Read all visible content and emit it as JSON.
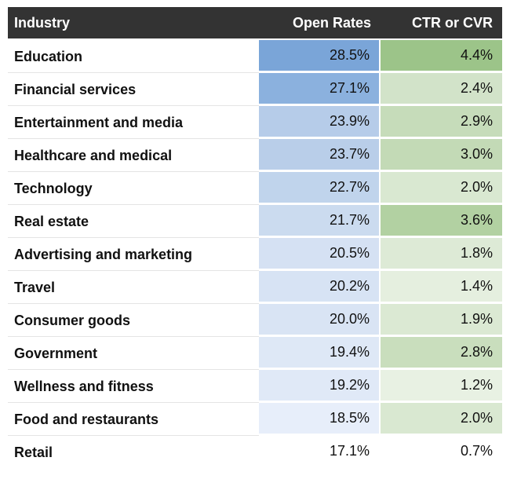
{
  "table": {
    "columns": [
      {
        "label": "Industry"
      },
      {
        "label": "Open Rates"
      },
      {
        "label": "CTR or CVR"
      }
    ],
    "rows": [
      {
        "industry": "Education",
        "open_rate": "28.5%",
        "ctr_or_cvr": "4.4%",
        "open_rate_color": "#7aa5d8",
        "ctr_color": "#9cc489"
      },
      {
        "industry": "Financial services",
        "open_rate": "27.1%",
        "ctr_or_cvr": "2.4%",
        "open_rate_color": "#8bb1de",
        "ctr_color": "#d2e3c9"
      },
      {
        "industry": "Entertainment and media",
        "open_rate": "23.9%",
        "ctr_or_cvr": "2.9%",
        "open_rate_color": "#b6cce9",
        "ctr_color": "#c6dcba"
      },
      {
        "industry": "Healthcare and medical",
        "open_rate": "23.7%",
        "ctr_or_cvr": "3.0%",
        "open_rate_color": "#b9cee9",
        "ctr_color": "#c3dab6"
      },
      {
        "industry": "Technology",
        "open_rate": "22.7%",
        "ctr_or_cvr": "2.0%",
        "open_rate_color": "#c0d4ec",
        "ctr_color": "#d9e8d1"
      },
      {
        "industry": "Real estate",
        "open_rate": "21.7%",
        "ctr_or_cvr": "3.6%",
        "open_rate_color": "#cbdbef",
        "ctr_color": "#b2d1a2"
      },
      {
        "industry": "Advertising and marketing",
        "open_rate": "20.5%",
        "ctr_or_cvr": "1.8%",
        "open_rate_color": "#d5e1f3",
        "ctr_color": "#ddead6"
      },
      {
        "industry": "Travel",
        "open_rate": "20.2%",
        "ctr_or_cvr": "1.4%",
        "open_rate_color": "#d7e3f4",
        "ctr_color": "#e5efdf"
      },
      {
        "industry": "Consumer goods",
        "open_rate": "20.0%",
        "ctr_or_cvr": "1.9%",
        "open_rate_color": "#d9e4f4",
        "ctr_color": "#dbe9d3"
      },
      {
        "industry": "Government",
        "open_rate": "19.4%",
        "ctr_or_cvr": "2.8%",
        "open_rate_color": "#dee8f6",
        "ctr_color": "#c9debd"
      },
      {
        "industry": "Wellness and fitness",
        "open_rate": "19.2%",
        "ctr_or_cvr": "1.2%",
        "open_rate_color": "#e0e9f7",
        "ctr_color": "#e8f1e3"
      },
      {
        "industry": "Food and restaurants",
        "open_rate": "18.5%",
        "ctr_or_cvr": "2.0%",
        "open_rate_color": "#e7eefa",
        "ctr_color": "#d9e8d1"
      },
      {
        "industry": "Retail",
        "open_rate": "17.1%",
        "ctr_or_cvr": "0.7%",
        "open_rate_color": "#ffffff",
        "ctr_color": "#ffffff"
      }
    ],
    "colors": {
      "header_bg": "#333333",
      "header_text": "#ffffff",
      "body_text": "#111111",
      "divider": "#e4e4e4",
      "open_rate_scale_max_color": "#7aa5d8",
      "ctr_scale_max_color": "#9cc489",
      "scale_min_color": "#ffffff"
    }
  },
  "chart_data": {
    "type": "table",
    "title": "",
    "categories": [
      "Education",
      "Financial services",
      "Entertainment and media",
      "Healthcare and medical",
      "Technology",
      "Real estate",
      "Advertising and marketing",
      "Travel",
      "Consumer goods",
      "Government",
      "Wellness and fitness",
      "Food and restaurants",
      "Retail"
    ],
    "series": [
      {
        "name": "Open Rates",
        "unit": "%",
        "values": [
          28.5,
          27.1,
          23.9,
          23.7,
          22.7,
          21.7,
          20.5,
          20.2,
          20.0,
          19.4,
          19.2,
          18.5,
          17.1
        ]
      },
      {
        "name": "CTR or CVR",
        "unit": "%",
        "values": [
          4.4,
          2.4,
          2.9,
          3.0,
          2.0,
          3.6,
          1.8,
          1.4,
          1.9,
          2.8,
          1.2,
          2.0,
          0.7
        ]
      }
    ],
    "layout_hints": {
      "conditional_formatting": "cell background intensity scales with value; blue scale for Open Rates, green scale for CTR or CVR",
      "sorted_by": "Open Rates descending"
    }
  }
}
